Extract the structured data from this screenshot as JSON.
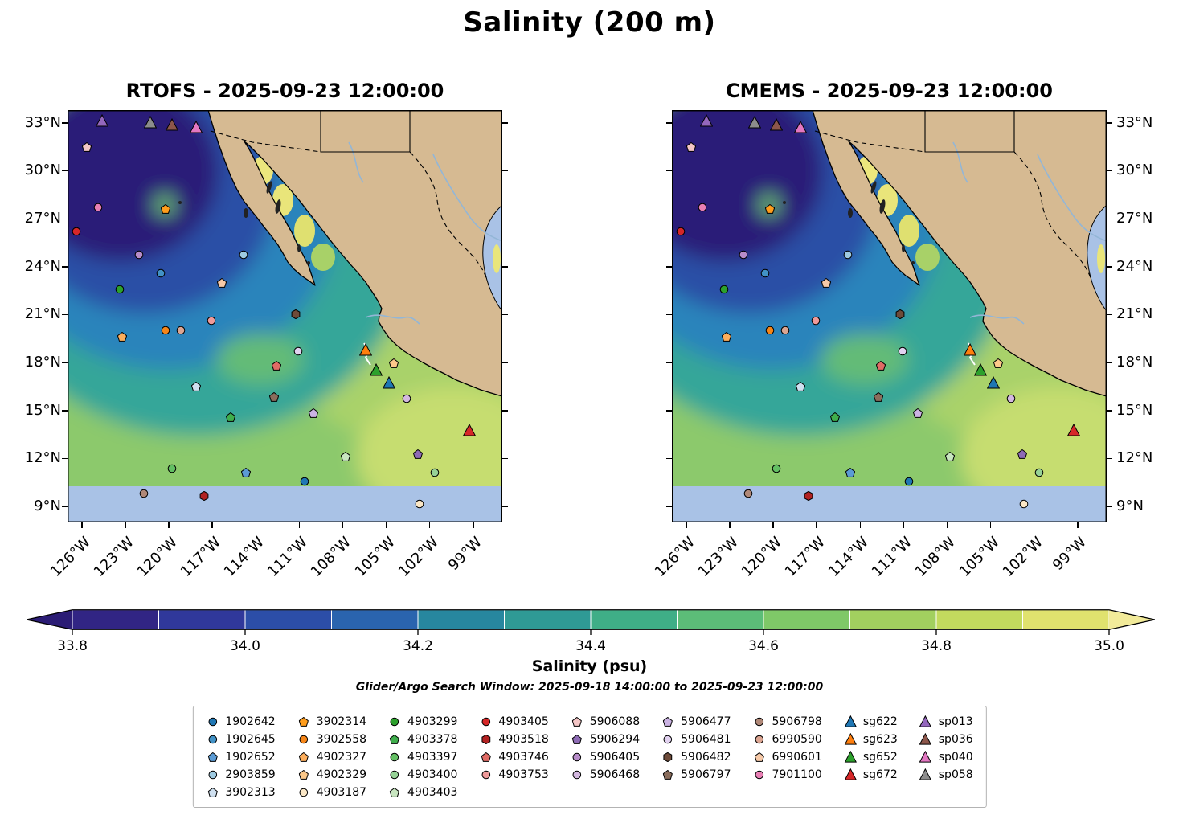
{
  "figure": {
    "title": "Salinity (200 m)"
  },
  "panels": [
    {
      "id": "rtofs",
      "title": "RTOFS - 2025-09-23 12:00:00"
    },
    {
      "id": "cmems",
      "title": "CMEMS - 2025-09-23 12:00:00"
    }
  ],
  "axes": {
    "lat_ticks": [
      {
        "label": "33°N",
        "pct": 3.1
      },
      {
        "label": "30°N",
        "pct": 14.7
      },
      {
        "label": "27°N",
        "pct": 26.4
      },
      {
        "label": "24°N",
        "pct": 38.0
      },
      {
        "label": "21°N",
        "pct": 49.6
      },
      {
        "label": "18°N",
        "pct": 61.2
      },
      {
        "label": "15°N",
        "pct": 72.9
      },
      {
        "label": "12°N",
        "pct": 84.5
      },
      {
        "label": "9°N",
        "pct": 96.1
      }
    ],
    "lon_ticks": [
      {
        "label": "126°W",
        "pct": 3.3
      },
      {
        "label": "123°W",
        "pct": 13.3
      },
      {
        "label": "120°W",
        "pct": 23.3
      },
      {
        "label": "117°W",
        "pct": 33.3
      },
      {
        "label": "114°W",
        "pct": 43.3
      },
      {
        "label": "111°W",
        "pct": 53.3
      },
      {
        "label": "108°W",
        "pct": 63.3
      },
      {
        "label": "105°W",
        "pct": 73.3
      },
      {
        "label": "102°W",
        "pct": 83.3
      },
      {
        "label": "99°W",
        "pct": 93.3
      }
    ]
  },
  "colorbar": {
    "label": "Salinity (psu)",
    "ticks": [
      "33.8",
      "34.0",
      "34.2",
      "34.4",
      "34.6",
      "34.8",
      "35.0"
    ],
    "range": [
      33.8,
      35.0
    ],
    "colors": [
      "#312584",
      "#30389b",
      "#2c4ea8",
      "#2a64ae",
      "#27879f",
      "#2f9a95",
      "#3fae87",
      "#5cbd78",
      "#7fc868",
      "#a2d05f",
      "#c3da5e",
      "#e0e26e"
    ],
    "under": "#2b1c75",
    "over": "#f2eb9a"
  },
  "search_window": "Glider/Argo Search Window: 2025-09-18 14:00:00 to 2025-09-23 12:00:00",
  "map_colors": {
    "land": "#d6ba92",
    "shallow_water": "#a9c2e6",
    "low_salinity_core": "#291d78",
    "mid_salinity": "#35a699",
    "high_salinity": "#e9e57a",
    "ocean_green": "#8cc96c"
  },
  "legend": {
    "columns": [
      {
        "items": [
          {
            "label": "1902642",
            "shape": "circle",
            "color": "#1f77b4"
          },
          {
            "label": "1902645",
            "shape": "circle",
            "color": "#4292c6"
          },
          {
            "label": "1902652",
            "shape": "pentagon",
            "color": "#5b9bd5"
          },
          {
            "label": "2903859",
            "shape": "circle",
            "color": "#9ecae1"
          },
          {
            "label": "3902313",
            "shape": "pentagon",
            "color": "#cfe0f0"
          }
        ]
      },
      {
        "items": [
          {
            "label": "3902314",
            "shape": "pentagon",
            "color": "#ff9d1c"
          },
          {
            "label": "3902558",
            "shape": "circle",
            "color": "#f58518"
          },
          {
            "label": "4902327",
            "shape": "pentagon",
            "color": "#fdae5c"
          },
          {
            "label": "4902329",
            "shape": "pentagon",
            "color": "#fdc98a"
          },
          {
            "label": "4903187",
            "shape": "circle",
            "color": "#fbe7c6"
          }
        ]
      },
      {
        "items": [
          {
            "label": "4903299",
            "shape": "circle",
            "color": "#2ca02c"
          },
          {
            "label": "4903378",
            "shape": "pentagon",
            "color": "#3fae4c"
          },
          {
            "label": "4903397",
            "shape": "circle",
            "color": "#63bf63"
          },
          {
            "label": "4903400",
            "shape": "circle",
            "color": "#96d296"
          },
          {
            "label": "4903403",
            "shape": "pentagon",
            "color": "#c8e6c0"
          }
        ]
      },
      {
        "items": [
          {
            "label": "4903405",
            "shape": "circle",
            "color": "#d62728"
          },
          {
            "label": "4903518",
            "shape": "hexagon",
            "color": "#b22222"
          },
          {
            "label": "4903746",
            "shape": "pentagon",
            "color": "#e06b65"
          },
          {
            "label": "4903753",
            "shape": "circle",
            "color": "#ef9a9a"
          }
        ]
      },
      {
        "items": [
          {
            "label": "5906088",
            "shape": "pentagon",
            "color": "#f4c6c6"
          },
          {
            "label": "5906294",
            "shape": "pentagon",
            "color": "#8e6bb5"
          },
          {
            "label": "5906405",
            "shape": "circle",
            "color": "#b78cc9"
          },
          {
            "label": "5906468",
            "shape": "circle",
            "color": "#d3b8e0"
          }
        ]
      },
      {
        "items": [
          {
            "label": "5906477",
            "shape": "pentagon",
            "color": "#cbb3e3"
          },
          {
            "label": "5906481",
            "shape": "circle",
            "color": "#e2d2f0"
          },
          {
            "label": "5906482",
            "shape": "hexagon",
            "color": "#6e4b3a"
          },
          {
            "label": "5906797",
            "shape": "pentagon",
            "color": "#8a6d5c"
          }
        ]
      },
      {
        "items": [
          {
            "label": "5906798",
            "shape": "circle",
            "color": "#b08878"
          },
          {
            "label": "6990590",
            "shape": "circle",
            "color": "#dba592"
          },
          {
            "label": "6990601",
            "shape": "pentagon",
            "color": "#f6c9a8"
          },
          {
            "label": "7901100",
            "shape": "circle",
            "color": "#e87fb4"
          }
        ]
      },
      {
        "items": [
          {
            "label": "sg622",
            "shape": "triangle",
            "color": "#1f77b4"
          },
          {
            "label": "sg623",
            "shape": "triangle",
            "color": "#ff7f0e"
          },
          {
            "label": "sg652",
            "shape": "triangle",
            "color": "#2ca02c"
          },
          {
            "label": "sg672",
            "shape": "triangle",
            "color": "#d62728"
          }
        ]
      },
      {
        "items": [
          {
            "label": "sp013",
            "shape": "triangle",
            "color": "#9467bd"
          },
          {
            "label": "sp036",
            "shape": "triangle",
            "color": "#8c564b"
          },
          {
            "label": "sp040",
            "shape": "triangle",
            "color": "#e377c2"
          },
          {
            "label": "sp058",
            "shape": "triangle",
            "color": "#8c8c8c"
          }
        ]
      }
    ]
  },
  "markers": [
    {
      "id": "sp013",
      "shape": "triangle",
      "color": "#9467bd",
      "x": 8,
      "y": 2.5
    },
    {
      "id": "sp036",
      "shape": "triangle",
      "color": "#8c564b",
      "x": 24,
      "y": 3.5
    },
    {
      "id": "sp058",
      "shape": "triangle",
      "color": "#8c8c8c",
      "x": 19,
      "y": 3
    },
    {
      "id": "sp040",
      "shape": "triangle",
      "color": "#e377c2",
      "x": 29.5,
      "y": 4
    },
    {
      "id": "5906088",
      "shape": "pentagon",
      "color": "#f4c6c6",
      "x": 4.5,
      "y": 9
    },
    {
      "id": "7901100",
      "shape": "circle",
      "color": "#e87fb4",
      "x": 7,
      "y": 23.5
    },
    {
      "id": "3902314",
      "shape": "pentagon",
      "color": "#ff9d1c",
      "x": 22.5,
      "y": 24
    },
    {
      "id": "4903405",
      "shape": "circle",
      "color": "#d62728",
      "x": 2,
      "y": 29.5
    },
    {
      "id": "5906405",
      "shape": "circle",
      "color": "#b78cc9",
      "x": 16.5,
      "y": 35
    },
    {
      "id": "2903859",
      "shape": "circle",
      "color": "#9ecae1",
      "x": 40.5,
      "y": 35
    },
    {
      "id": "1902645",
      "shape": "circle",
      "color": "#4292c6",
      "x": 21.5,
      "y": 39.5
    },
    {
      "id": "4903299",
      "shape": "circle",
      "color": "#2ca02c",
      "x": 12,
      "y": 43.5
    },
    {
      "id": "6990601",
      "shape": "pentagon",
      "color": "#f6c9a8",
      "x": 35.5,
      "y": 42
    },
    {
      "id": "5906482",
      "shape": "hexagon",
      "color": "#6e4b3a",
      "x": 52.5,
      "y": 49.5
    },
    {
      "id": "4903753",
      "shape": "circle",
      "color": "#ef9a9a",
      "x": 33,
      "y": 51
    },
    {
      "id": "4902327",
      "shape": "pentagon",
      "color": "#fdae5c",
      "x": 12.5,
      "y": 55
    },
    {
      "id": "3902558",
      "shape": "circle",
      "color": "#f58518",
      "x": 22.5,
      "y": 53.5
    },
    {
      "id": "6990590",
      "shape": "circle",
      "color": "#dba592",
      "x": 26,
      "y": 53.5
    },
    {
      "id": "5906481",
      "shape": "circle",
      "color": "#e2d2f0",
      "x": 53,
      "y": 58.5
    },
    {
      "id": "sg623",
      "shape": "triangle",
      "color": "#ff7f0e",
      "x": 68.5,
      "y": 58
    },
    {
      "id": "4902329",
      "shape": "pentagon",
      "color": "#fdc98a",
      "x": 75,
      "y": 61.5
    },
    {
      "id": "3902313",
      "shape": "pentagon",
      "color": "#cfe0f0",
      "x": 29.5,
      "y": 67
    },
    {
      "id": "sg622",
      "shape": "triangle",
      "color": "#1f77b4",
      "x": 74,
      "y": 66
    },
    {
      "id": "sg652",
      "shape": "triangle",
      "color": "#2ca02c",
      "x": 71,
      "y": 63
    },
    {
      "id": "4903746",
      "shape": "pentagon",
      "color": "#e06b65",
      "x": 48,
      "y": 62
    },
    {
      "id": "5906797",
      "shape": "pentagon",
      "color": "#8a6d5c",
      "x": 47.5,
      "y": 69.5
    },
    {
      "id": "5906468",
      "shape": "circle",
      "color": "#d3b8e0",
      "x": 78,
      "y": 70
    },
    {
      "id": "4903378",
      "shape": "pentagon",
      "color": "#3fae4c",
      "x": 37.5,
      "y": 74.5
    },
    {
      "id": "5906477",
      "shape": "pentagon",
      "color": "#cbb3e3",
      "x": 56.5,
      "y": 73.5
    },
    {
      "id": "sg672",
      "shape": "triangle",
      "color": "#d62728",
      "x": 92.5,
      "y": 77.5
    },
    {
      "id": "5906294",
      "shape": "pentagon",
      "color": "#8e6bb5",
      "x": 80.5,
      "y": 83.5
    },
    {
      "id": "4903403",
      "shape": "pentagon",
      "color": "#c8e6c0",
      "x": 64,
      "y": 84
    },
    {
      "id": "4903397",
      "shape": "circle",
      "color": "#63bf63",
      "x": 24,
      "y": 87
    },
    {
      "id": "1902652",
      "shape": "pentagon",
      "color": "#5b9bd5",
      "x": 41,
      "y": 88
    },
    {
      "id": "1902642",
      "shape": "circle",
      "color": "#1f77b4",
      "x": 54.5,
      "y": 90
    },
    {
      "id": "4903400",
      "shape": "circle",
      "color": "#96d296",
      "x": 84.5,
      "y": 88
    },
    {
      "id": "5906798",
      "shape": "circle",
      "color": "#b08878",
      "x": 17.5,
      "y": 93
    },
    {
      "id": "4903518",
      "shape": "hexagon",
      "color": "#b22222",
      "x": 31.5,
      "y": 93.5
    },
    {
      "id": "4903187",
      "shape": "circle",
      "color": "#fbe7c6",
      "x": 81,
      "y": 95.5
    }
  ]
}
